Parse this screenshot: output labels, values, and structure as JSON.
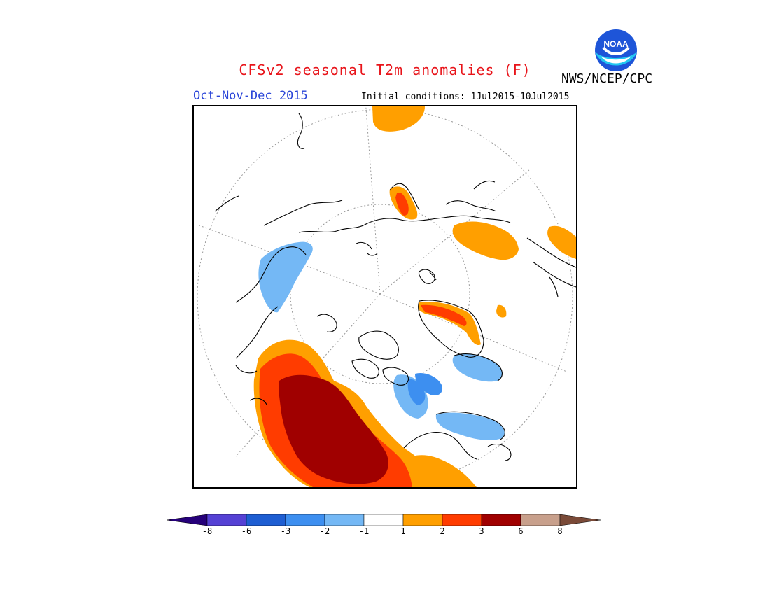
{
  "title": "CFSv2 seasonal T2m anomalies (F)",
  "agency": "NWS/NCEP/CPC",
  "logo_text": "NOAA",
  "season": "Oct-Nov-Dec 2015",
  "initial_conditions": "Initial conditions: 1Jul2015-10Jul2015",
  "colorbar": {
    "colors": [
      "#26007a",
      "#5541d4",
      "#1e5ed2",
      "#3d8ff0",
      "#74b8f5",
      "#ffffff",
      "#ff9f00",
      "#ff3c00",
      "#a00000",
      "#c8a08c",
      "#7a4a38"
    ],
    "labels": [
      "-8",
      "-6",
      "-3",
      "-2",
      "-1",
      "1",
      "2",
      "3",
      "6",
      "8"
    ]
  }
}
